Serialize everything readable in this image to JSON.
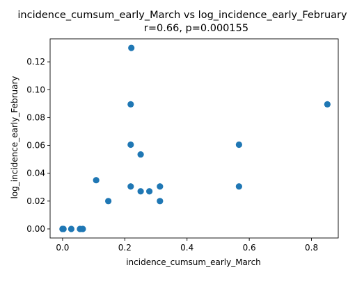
{
  "chart_data": {
    "type": "scatter",
    "title": "incidence_cumsum_early_March vs log_incidence_early_February",
    "subtitle": "r=0.66, p=0.000155",
    "xlabel": "incidence_cumsum_early_March",
    "ylabel": "log_incidence_early_February",
    "xlim": [
      -0.04,
      0.886
    ],
    "ylim": [
      -0.0065,
      0.1365
    ],
    "x_ticks": [
      0.0,
      0.2,
      0.4,
      0.6,
      0.8
    ],
    "x_tick_labels": [
      "0.0",
      "0.2",
      "0.4",
      "0.6",
      "0.8"
    ],
    "y_ticks": [
      0.0,
      0.02,
      0.04,
      0.06,
      0.08,
      0.1,
      0.12
    ],
    "y_tick_labels": [
      "0.00",
      "0.02",
      "0.04",
      "0.06",
      "0.08",
      "0.10",
      "0.12"
    ],
    "grid": false,
    "marker_color": "#1f77b4",
    "points": [
      {
        "x": 0.0,
        "y": 0.0
      },
      {
        "x": 0.0,
        "y": 0.0
      },
      {
        "x": 0.003,
        "y": 0.0
      },
      {
        "x": 0.028,
        "y": 0.0
      },
      {
        "x": 0.056,
        "y": 0.0
      },
      {
        "x": 0.065,
        "y": 0.0
      },
      {
        "x": 0.108,
        "y": 0.035
      },
      {
        "x": 0.147,
        "y": 0.02
      },
      {
        "x": 0.221,
        "y": 0.13
      },
      {
        "x": 0.219,
        "y": 0.0895
      },
      {
        "x": 0.219,
        "y": 0.0605
      },
      {
        "x": 0.219,
        "y": 0.0305
      },
      {
        "x": 0.251,
        "y": 0.0535
      },
      {
        "x": 0.251,
        "y": 0.027
      },
      {
        "x": 0.279,
        "y": 0.027
      },
      {
        "x": 0.313,
        "y": 0.0305
      },
      {
        "x": 0.313,
        "y": 0.02
      },
      {
        "x": 0.567,
        "y": 0.0605
      },
      {
        "x": 0.567,
        "y": 0.0305
      },
      {
        "x": 0.851,
        "y": 0.0895
      }
    ]
  }
}
